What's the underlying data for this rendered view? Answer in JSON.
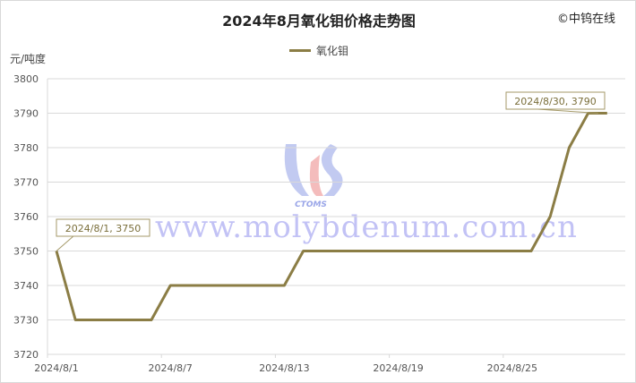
{
  "title": "2024年8月氧化钼价格走势图",
  "brand": "©中钨在线",
  "watermark": "www.molybdenum.com.cn",
  "watermark_logo_text": "CTOMS",
  "chart_data": {
    "type": "line",
    "title": "2024年8月氧化钼价格走势图",
    "ylabel": "元/吨度",
    "ylim": [
      3720,
      3800
    ],
    "yticks": [
      3720,
      3730,
      3740,
      3750,
      3760,
      3770,
      3780,
      3790,
      3800
    ],
    "xtick_labels": [
      "2024/8/1",
      "2024/8/7",
      "2024/8/13",
      "2024/8/19",
      "2024/8/25"
    ],
    "grid": true,
    "legend": "top",
    "color": "#8b7d45",
    "series": [
      {
        "name": "氧化钼",
        "x": [
          "2024/8/1",
          "2024/8/2",
          "2024/8/3",
          "2024/8/4",
          "2024/8/5",
          "2024/8/6",
          "2024/8/7",
          "2024/8/8",
          "2024/8/9",
          "2024/8/10",
          "2024/8/11",
          "2024/8/12",
          "2024/8/13",
          "2024/8/14",
          "2024/8/15",
          "2024/8/16",
          "2024/8/17",
          "2024/8/18",
          "2024/8/19",
          "2024/8/20",
          "2024/8/21",
          "2024/8/22",
          "2024/8/23",
          "2024/8/24",
          "2024/8/25",
          "2024/8/26",
          "2024/8/27",
          "2024/8/28",
          "2024/8/29",
          "2024/8/30"
        ],
        "values": [
          3750,
          3730,
          3730,
          3730,
          3730,
          3730,
          3740,
          3740,
          3740,
          3740,
          3740,
          3740,
          3740,
          3750,
          3750,
          3750,
          3750,
          3750,
          3750,
          3750,
          3750,
          3750,
          3750,
          3750,
          3750,
          3750,
          3760,
          3780,
          3790,
          3790
        ]
      }
    ],
    "annotations": [
      "2024/8/1, 3750",
      "2024/8/30, 3790"
    ]
  }
}
